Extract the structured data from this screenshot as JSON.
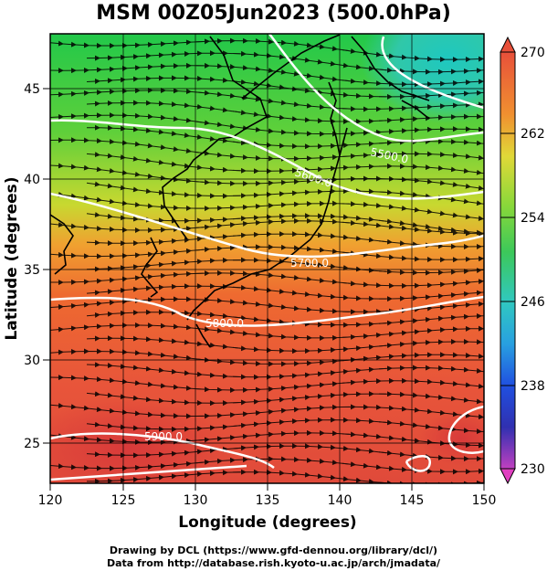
{
  "title": "MSM 00Z05Jun2023 (500.0hPa)",
  "x_axis": {
    "label": "Longitude (degrees)",
    "ticks": [
      "120",
      "125",
      "130",
      "135",
      "140",
      "145",
      "150"
    ]
  },
  "y_axis": {
    "label": "Latitude  (degrees)",
    "ticks": [
      "25",
      "30",
      "35",
      "40",
      "45"
    ]
  },
  "colorbar": {
    "ticks": [
      "270",
      "262",
      "254",
      "246",
      "238",
      "230"
    ]
  },
  "contours": [
    "5500.0",
    "5600.0",
    "5700.0",
    "5800.0",
    "5900.0"
  ],
  "credit_line1": "Drawing by DCL (https://www.gfd-dennou.org/library/dcl/)",
  "credit_line2": "Data from http://database.rish.kyoto-u.ac.jp/arch/jmadata/",
  "icons": [
    "colorbar-max-arrow",
    "colorbar-min-arrow"
  ],
  "colors": {
    "max_temp": "#d0453a",
    "mid_temp": "#3cc85a",
    "min_temp": "#e040c0"
  }
}
